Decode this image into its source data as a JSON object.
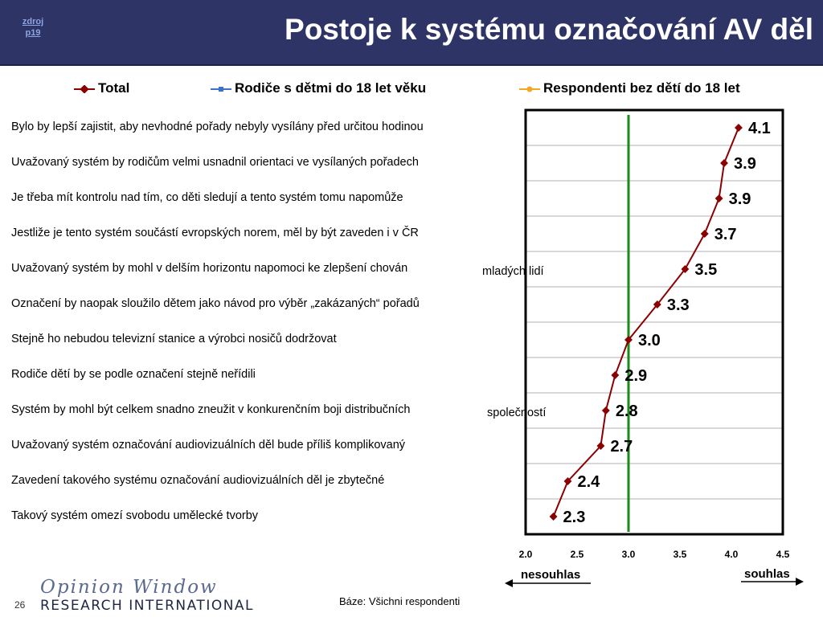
{
  "slide": {
    "title": "Postoje k systému označování AV děl",
    "source_line1": "zdroj",
    "source_line2": "p19",
    "footnote": "Báze: Všichni respondenti",
    "page_number": "26",
    "logo_line1": "Opinion Window",
    "logo_line2": "RESEARCH INTERNATIONAL",
    "direction_left": "nesouhlas",
    "direction_right": "souhlas",
    "colors": {
      "header_bg": "#2e3466",
      "total": "#8b0000",
      "parents": "#3b6fc8",
      "no_children": "#f5a623",
      "reference_line": "#1a8a1a"
    }
  },
  "legend": [
    {
      "name": "Total",
      "color": "#8b0000"
    },
    {
      "name": "Rodiče s dětmi do 18 let věku",
      "color": "#3b6fc8"
    },
    {
      "name": "Respondenti bez dětí do 18 let",
      "color": "#f5a623"
    }
  ],
  "statements": [
    {
      "text": "Bylo by lepší zajistit, aby nevhodné pořady nebyly vysílány před určitou hodinou",
      "cont": ""
    },
    {
      "text": "Uvažovaný systém by rodičům velmi usnadnil orientaci ve vysílaných pořadech",
      "cont": ""
    },
    {
      "text": "Je třeba mít kontrolu nad tím, co děti sledují a tento systém tomu napomůže",
      "cont": ""
    },
    {
      "text": "Jestliže je tento systém součástí evropských norem, měl by být zaveden i v ČR",
      "cont": ""
    },
    {
      "text": "Uvažovaný systém by mohl v delším horizontu napomoci ke zlepšení chován",
      "cont": "mladých lidí"
    },
    {
      "text": "Označení by naopak sloužilo dětem jako návod pro výběr „zakázaných“ pořadů",
      "cont": ""
    },
    {
      "text": "Stejně ho nebudou televizní stanice a výrobci nosičů dodržovat",
      "cont": ""
    },
    {
      "text": "Rodiče dětí by se podle označení stejně neřídili",
      "cont": ""
    },
    {
      "text": "Systém by mohl být celkem snadno zneužit v konkurenčním boji distribučních",
      "cont": "společností"
    },
    {
      "text": "Uvažovaný systém označování audiovizuálních děl bude příliš komplikovaný",
      "cont": ""
    },
    {
      "text": "Zavedení takového systému označování audiovizuálních děl je zbytečné",
      "cont": ""
    },
    {
      "text": "Takový systém omezí svobodu umělecké tvorby",
      "cont": ""
    }
  ],
  "chart_data": {
    "type": "line",
    "orientation": "horizontal",
    "categories": [
      "Bylo by lepší zajistit, aby nevhodné pořady nebyly vysílány před určitou hodinou",
      "Uvažovaný systém by rodičům velmi usnadnil orientaci ve vysílaných pořadech",
      "Je třeba mít kontrolu nad tím, co děti sledují a tento systém tomu napomůže",
      "Jestliže je tento systém součástí evropských norem, měl by být zaveden i v ČR",
      "Uvažovaný systém by mohl v delším horizontu napomoci ke zlepšení chován mladých lidí",
      "Označení by naopak sloužilo dětem jako návod pro výběr „zakázaných“ pořadů",
      "Stejně ho nebudou televizní stanice a výrobci nosičů dodržovat",
      "Rodiče dětí by se podle označení stejně neřídili",
      "Systém by mohl být celkem snadno zneužit v konkurenčním boji distribučních společností",
      "Uvažovaný systém označování audiovizuálních děl bude příliš komplikovaný",
      "Zavedení takového systému označování audiovizuálních děl je zbytečné",
      "Takový systém omezí svobodu umělecké tvorby"
    ],
    "series": [
      {
        "name": "Total",
        "color": "#8b0000",
        "values": [
          4.07,
          3.93,
          3.88,
          3.74,
          3.55,
          3.28,
          3.0,
          2.87,
          2.78,
          2.73,
          2.41,
          2.27
        ],
        "labels": [
          "4.1",
          "3.9",
          "3.9",
          "3.7",
          "3.5",
          "3.3",
          "3.0",
          "2.9",
          "2.8",
          "2.7",
          "2.4",
          "2.3"
        ]
      }
    ],
    "xlim": [
      2.0,
      4.5
    ],
    "xticks": [
      "2.0",
      "2.5",
      "3.0",
      "3.5",
      "4.0",
      "4.5"
    ],
    "reference_line": 3.0,
    "grid": "horizontal",
    "legend_position": "top"
  }
}
